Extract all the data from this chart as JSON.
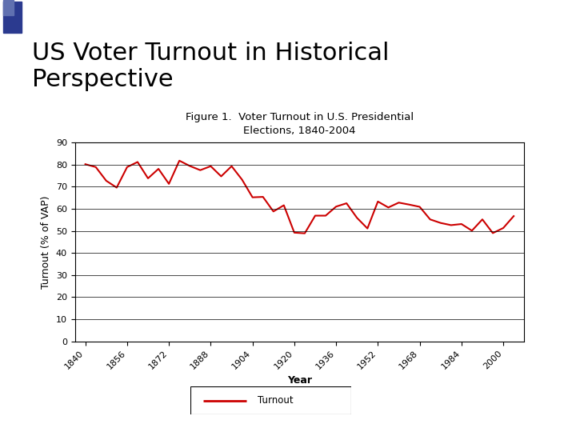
{
  "title_main": "US Voter Turnout in Historical\nPerspective",
  "chart_title": "Figure 1.  Voter Turnout in U.S. Presidential\nElections, 1840-2004",
  "xlabel": "Year",
  "ylabel": "Turnout (% of VAP)",
  "legend_label": "Turnout",
  "line_color": "#CC0000",
  "background_color": "#FFFFFF",
  "header_color": "#D0D4E8",
  "square1_color": "#2B3A8F",
  "square2_color": "#6070B0",
  "years": [
    1840,
    1844,
    1848,
    1852,
    1856,
    1860,
    1864,
    1868,
    1872,
    1876,
    1880,
    1884,
    1888,
    1892,
    1896,
    1900,
    1904,
    1908,
    1912,
    1916,
    1920,
    1924,
    1928,
    1932,
    1936,
    1940,
    1944,
    1948,
    1952,
    1956,
    1960,
    1964,
    1968,
    1972,
    1976,
    1980,
    1984,
    1988,
    1992,
    1996,
    2000,
    2004
  ],
  "turnout": [
    80.2,
    78.9,
    72.7,
    69.6,
    78.9,
    81.2,
    73.8,
    78.1,
    71.3,
    81.8,
    79.4,
    77.5,
    79.3,
    74.7,
    79.3,
    73.2,
    65.2,
    65.4,
    58.8,
    61.6,
    49.2,
    48.9,
    56.9,
    56.9,
    61.0,
    62.5,
    55.9,
    51.1,
    63.3,
    60.6,
    62.8,
    61.9,
    60.9,
    55.2,
    53.6,
    52.6,
    53.1,
    50.1,
    55.2,
    49.0,
    51.3,
    56.7
  ],
  "ylim": [
    0,
    90
  ],
  "yticks": [
    0,
    10,
    20,
    30,
    40,
    50,
    60,
    70,
    80,
    90
  ],
  "xticks": [
    1840,
    1856,
    1872,
    1888,
    1904,
    1920,
    1936,
    1952,
    1968,
    1984,
    2000
  ],
  "xlim": [
    1836,
    2008
  ],
  "main_title_fontsize": 22,
  "chart_title_fontsize": 9.5,
  "axis_label_fontsize": 9,
  "tick_fontsize": 8,
  "legend_fontsize": 8.5
}
